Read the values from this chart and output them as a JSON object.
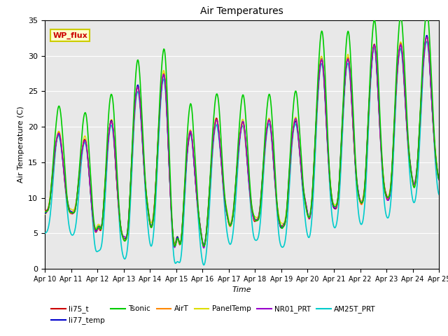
{
  "title": "Air Temperatures",
  "xlabel": "Time",
  "ylabel": "Air Temperature (C)",
  "ylim": [
    0,
    35
  ],
  "xlim": [
    0,
    15
  ],
  "x_tick_labels": [
    "Apr 10",
    "Apr 11",
    "Apr 12",
    "Apr 13",
    "Apr 14",
    "Apr 15",
    "Apr 16",
    "Apr 17",
    "Apr 18",
    "Apr 19",
    "Apr 20",
    "Apr 21",
    "Apr 22",
    "Apr 23",
    "Apr 24",
    "Apr 25"
  ],
  "series_order": [
    "li75_t",
    "li77_temp",
    "Tsonic",
    "AirT",
    "PanelTemp",
    "NR01_PRT",
    "AM25T_PRT"
  ],
  "series": {
    "li75_t": {
      "color": "#cc0000",
      "lw": 1.0,
      "zorder": 4
    },
    "li77_temp": {
      "color": "#0000cc",
      "lw": 1.0,
      "zorder": 4
    },
    "Tsonic": {
      "color": "#00cc00",
      "lw": 1.2,
      "zorder": 5
    },
    "AirT": {
      "color": "#ff8800",
      "lw": 1.0,
      "zorder": 4
    },
    "PanelTemp": {
      "color": "#dddd00",
      "lw": 1.0,
      "zorder": 3
    },
    "NR01_PRT": {
      "color": "#9900cc",
      "lw": 1.0,
      "zorder": 4
    },
    "AM25T_PRT": {
      "color": "#00cccc",
      "lw": 1.2,
      "zorder": 3
    }
  },
  "annotation_text": "WP_flux",
  "annotation_color": "#cc0000",
  "annotation_bg": "#ffffcc",
  "annotation_border": "#cccc00",
  "bg_color": "#e8e8e8"
}
